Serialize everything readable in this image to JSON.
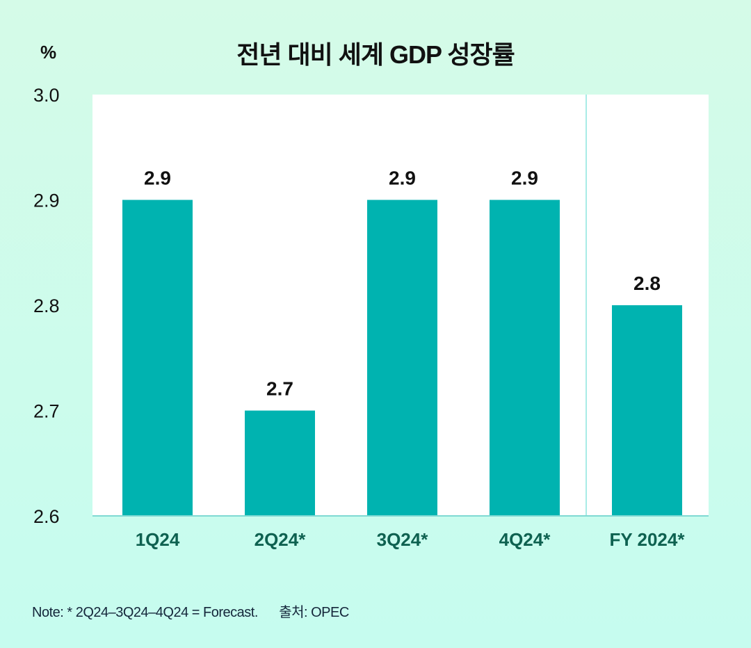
{
  "chart_data": {
    "type": "bar",
    "title": "전년 대비 세계 GDP 성장률",
    "ylabel": "%",
    "xlabel": "",
    "categories": [
      "1Q24",
      "2Q24*",
      "3Q24*",
      "4Q24*",
      "FY 2024*"
    ],
    "values": [
      2.9,
      2.7,
      2.9,
      2.9,
      2.8
    ],
    "data_labels": [
      "2.9",
      "2.7",
      "2.9",
      "2.9",
      "2.8"
    ],
    "ylim": [
      2.6,
      3.0
    ],
    "yticks": [
      "2.6",
      "2.7",
      "2.8",
      "2.9",
      "3.0"
    ],
    "grid": false,
    "note": "Note: * 2Q24–3Q24–4Q24 = Forecast.      출처: OPEC",
    "colors": {
      "bar": "#00b3b0",
      "category_text": "#0e6150",
      "axis": "#7fd9d3"
    }
  }
}
